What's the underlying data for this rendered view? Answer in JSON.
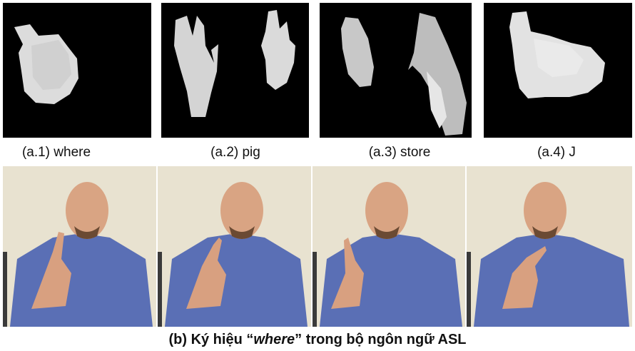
{
  "figure": {
    "top_row": [
      {
        "label": "(a.1) where"
      },
      {
        "label": "(a.2) pig"
      },
      {
        "label": "(a.3) store"
      },
      {
        "label": "(a.4) J"
      }
    ],
    "bottom_caption": {
      "prefix": "(b) Ký hiệu ",
      "quote_open": "“",
      "word": "where",
      "quote_close": "”",
      "suffix": " trong bộ ngôn ngữ ASL"
    },
    "colors": {
      "depth_background": "#000000",
      "hand_depth": "#d9d9d9",
      "wall": "#e8e2d0",
      "sweater": "#5a6fb5",
      "skin": "#d9a483"
    }
  }
}
